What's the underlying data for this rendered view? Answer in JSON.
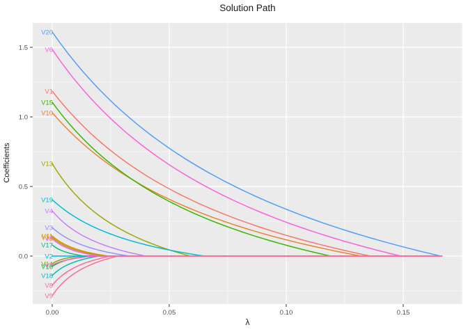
{
  "title": "Solution Path",
  "axes": {
    "x_label": "λ",
    "y_label": "Coefficients",
    "x_ticks": [
      {
        "value": 0.0,
        "label": "0.00"
      },
      {
        "value": 0.05,
        "label": "0.05"
      },
      {
        "value": 0.1,
        "label": "0.10"
      },
      {
        "value": 0.15,
        "label": "0.15"
      }
    ],
    "y_ticks": [
      {
        "value": 0.0,
        "label": "0.0"
      },
      {
        "value": 0.5,
        "label": "0.5"
      },
      {
        "value": 1.0,
        "label": "1.0"
      },
      {
        "value": 1.5,
        "label": "1.5"
      }
    ],
    "x_minor": [
      0.025,
      0.075,
      0.125,
      0.175
    ],
    "y_minor": [
      -0.25,
      0.25,
      0.75,
      1.25
    ]
  },
  "colors": {
    "panel_bg": "#EBEBEB",
    "grid": "#FFFFFF",
    "tick_text": "#4D4D4D",
    "tick_mark": "#333333",
    "title_text": "#1A1A1A"
  },
  "chart_data": {
    "type": "line",
    "title": "Solution Path",
    "xlabel": "λ",
    "ylabel": "Coefficients",
    "xlim": [
      -0.0083,
      0.1748
    ],
    "ylim": [
      -0.38,
      1.7
    ],
    "lambda_max": 0.1665,
    "grid": true,
    "legend_position": "none",
    "description": "Lasso solution path: each series starts at coefficient value 'start' at lambda=0, decays convexly to 0 at 'zero_lambda', then stays 0 up to lambda_max.",
    "series": [
      {
        "name": "V1",
        "color": "#F8766D",
        "start": 1.185,
        "zero_lambda": 0.136
      },
      {
        "name": "V10",
        "color": "#EA8331",
        "start": 1.03,
        "zero_lambda": 0.132
      },
      {
        "name": "V11",
        "color": "#D89000",
        "start": 0.145,
        "zero_lambda": 0.024
      },
      {
        "name": "V12",
        "color": "#C09B00",
        "start": 0.135,
        "zero_lambda": 0.022
      },
      {
        "name": "V13",
        "color": "#A3A500",
        "start": 0.665,
        "zero_lambda": 0.059
      },
      {
        "name": "V14",
        "color": "#7CAE00",
        "start": -0.055,
        "zero_lambda": 0.012
      },
      {
        "name": "V15",
        "color": "#39B600",
        "start": 1.105,
        "zero_lambda": 0.119
      },
      {
        "name": "V16",
        "color": "#00BB4E",
        "start": -0.075,
        "zero_lambda": 0.016
      },
      {
        "name": "V17",
        "color": "#00C08B",
        "start": 0.08,
        "zero_lambda": 0.014
      },
      {
        "name": "V18",
        "color": "#00C0B8",
        "start": -0.14,
        "zero_lambda": 0.02
      },
      {
        "name": "V19",
        "color": "#00BCD8",
        "start": 0.405,
        "zero_lambda": 0.065
      },
      {
        "name": "V2",
        "color": "#00B0F6",
        "start": 0.0,
        "zero_lambda": 0.0
      },
      {
        "name": "V20",
        "color": "#519DF8",
        "start": 1.61,
        "zero_lambda": 0.166
      },
      {
        "name": "V3",
        "color": "#9590FF",
        "start": 0.205,
        "zero_lambda": 0.033
      },
      {
        "name": "V4",
        "color": "#C77CFF",
        "start": 0.325,
        "zero_lambda": 0.04
      },
      {
        "name": "V5",
        "color": "#E76BF3",
        "start": 0.125,
        "zero_lambda": 0.02
      },
      {
        "name": "V6",
        "color": "#FA62DB",
        "start": 1.485,
        "zero_lambda": 0.149
      },
      {
        "name": "V7",
        "color": "#FF61C3",
        "start": -0.065,
        "zero_lambda": 0.018
      },
      {
        "name": "V8",
        "color": "#FF689E",
        "start": -0.21,
        "zero_lambda": 0.025
      },
      {
        "name": "V9",
        "color": "#FF6C91",
        "start": -0.285,
        "zero_lambda": 0.028
      }
    ]
  }
}
